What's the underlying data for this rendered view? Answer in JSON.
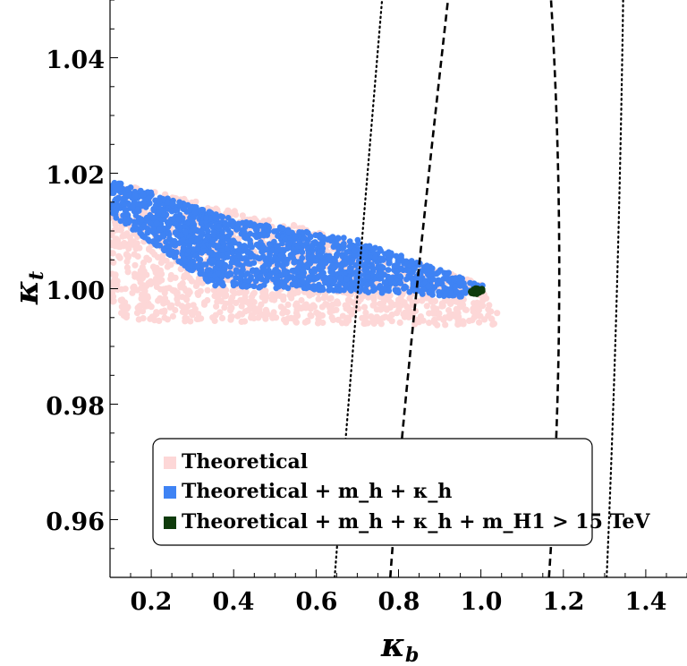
{
  "chart_data": {
    "type": "scatter",
    "title": "",
    "xlabel": "κ",
    "xlabel_sub": "b",
    "ylabel": "κ",
    "ylabel_sub": "t",
    "xlim": [
      0.1,
      1.5
    ],
    "ylim": [
      0.95,
      1.05
    ],
    "x_ticks": [
      "0.2",
      "0.4",
      "0.6",
      "0.8",
      "1.0",
      "1.2",
      "1.4"
    ],
    "y_ticks": [
      "0.96",
      "0.98",
      "1.00",
      "1.02",
      "1.04"
    ],
    "grid": false,
    "legend_position": "bottom-left",
    "colors": {
      "theoretical": "#fdd7d7",
      "mh_kh": "#3f83f4",
      "mh1": "#0f3b0c"
    },
    "series": [
      {
        "name": "Theoretical",
        "color_key": "theoretical",
        "region_kb": [
          0.1,
          1.05
        ],
        "region_kt": [
          0.9935,
          1.0185
        ],
        "approx_points": [
          [
            0.1,
            1.0185
          ],
          [
            0.5,
            1.012
          ],
          [
            1.0,
            1.001
          ],
          [
            1.05,
            0.9945
          ],
          [
            1.03,
            0.9935
          ],
          [
            0.15,
            0.9945
          ],
          [
            0.1,
            0.997
          ]
        ]
      },
      {
        "name": "Theoretical + m_h + κ_h",
        "color_key": "mh_kh",
        "region_kb": [
          0.1,
          1.02
        ],
        "region_kt": [
          0.998,
          1.019
        ],
        "approx_points": [
          [
            0.1,
            1.019
          ],
          [
            0.4,
            1.012
          ],
          [
            0.7,
            1.0085
          ],
          [
            1.01,
            1.0005
          ],
          [
            0.98,
            0.9985
          ],
          [
            0.6,
            0.9998
          ],
          [
            0.35,
            1.0005
          ],
          [
            0.1,
            1.013
          ]
        ]
      },
      {
        "name": "Theoretical + m_h + κ_h + m_H1 > 15 TeV",
        "color_key": "mh1",
        "region_kb": [
          0.97,
          1.01
        ],
        "region_kt": [
          0.999,
          1.0005
        ],
        "approx_points": [
          [
            0.97,
            0.9993
          ],
          [
            0.985,
            1.0001
          ],
          [
            1.0,
            1.0001
          ],
          [
            1.01,
            0.9998
          ],
          [
            0.99,
            0.999
          ]
        ]
      }
    ],
    "contours": [
      {
        "style": "dashed",
        "label": "inner left",
        "points": [
          [
            0.78,
            0.95
          ],
          [
            0.83,
            0.99
          ],
          [
            0.92,
            1.05
          ]
        ]
      },
      {
        "style": "dashed",
        "label": "inner right",
        "points": [
          [
            1.165,
            0.95
          ],
          [
            1.19,
            1.0
          ],
          [
            1.17,
            1.05
          ]
        ]
      },
      {
        "style": "dotted",
        "label": "outer left",
        "points": [
          [
            0.645,
            0.95
          ],
          [
            0.69,
            0.99
          ],
          [
            0.76,
            1.05
          ]
        ]
      },
      {
        "style": "dotted",
        "label": "outer right",
        "points": [
          [
            1.305,
            0.95
          ],
          [
            1.33,
            1.0
          ],
          [
            1.345,
            1.05
          ]
        ]
      }
    ],
    "legend": [
      {
        "text": "Theoretical",
        "color_key": "theoretical"
      },
      {
        "text": "Theoretical + m_h + κ_h",
        "color_key": "mh_kh"
      },
      {
        "text": "Theoretical + m_h + κ_h + m_H1 > 15 TeV",
        "color_key": "mh1"
      }
    ]
  }
}
